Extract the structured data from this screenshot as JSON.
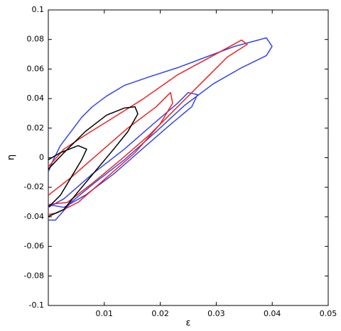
{
  "chart_data": {
    "type": "line",
    "xlabel": "ε",
    "ylabel": "η",
    "xlim": [
      0,
      0.05
    ],
    "xticks": [
      0.01,
      0.02,
      0.03,
      0.04,
      0.05
    ],
    "ylim": [
      -0.1,
      0.1
    ],
    "yticks": [
      -0.1,
      -0.08,
      -0.06,
      -0.04,
      -0.02,
      0,
      0.02,
      0.04,
      0.06,
      0.08,
      0.1
    ],
    "series": [
      {
        "color": "#3344ee",
        "x": [
          0,
          0.00089,
          0.00216,
          0.00406,
          0.00596,
          0.00787,
          0.01041,
          0.01358,
          0.01802,
          0.0231,
          0.02817,
          0.03325,
          0.03896,
          0.03997,
          0.03896,
          0.03452,
          0.02944,
          0.02437,
          0.01929,
          0.01358,
          0.00787,
          0.00406,
          0.00127,
          0
        ],
        "values": [
          -0.0096,
          -0.0014,
          0.0082,
          0.0177,
          0.0273,
          0.0345,
          0.0417,
          0.0489,
          0.0547,
          0.0609,
          0.0681,
          0.0753,
          0.0811,
          0.0753,
          0.0691,
          0.0609,
          0.0499,
          0.0355,
          0.0177,
          -0.0014,
          -0.0182,
          -0.0302,
          -0.0422,
          -0.0422
        ]
      },
      {
        "color": "#3344ee",
        "x": [
          0,
          0.00279,
          0.00787,
          0.01358,
          0.01865,
          0.0231,
          0.025,
          0.02665,
          0.02563,
          0.02183,
          0.01675,
          0.01168,
          0.0066,
          0.00279,
          0
        ],
        "values": [
          -0.0336,
          -0.0278,
          -0.011,
          0.0058,
          0.0225,
          0.0369,
          0.0441,
          0.0427,
          0.0345,
          0.0225,
          0.0058,
          -0.011,
          -0.0254,
          -0.0336,
          -0.0317
        ]
      },
      {
        "color": "#ee2222",
        "x": [
          0,
          0.00279,
          0.0066,
          0.01168,
          0.01675,
          0.0231,
          0.02944,
          0.03452,
          0.03553,
          0.03198,
          0.02817,
          0.0231,
          0.01802,
          0.01294,
          0.00787,
          0.00343,
          0
        ],
        "values": [
          -0.0062,
          0.0058,
          0.0153,
          0.0273,
          0.0393,
          0.0561,
          0.0691,
          0.0796,
          0.0767,
          0.0681,
          0.0537,
          0.0345,
          0.0153,
          -0.0014,
          -0.0173,
          -0.0302,
          -0.0317
        ]
      },
      {
        "color": "#ee2222",
        "x": [
          0,
          0.00406,
          0.00914,
          0.01421,
          0.01929,
          0.02183,
          0.02221,
          0.01992,
          0.01548,
          0.01041,
          0.00533,
          0.00152,
          0
        ],
        "values": [
          -0.0254,
          -0.0134,
          0.0034,
          0.0201,
          0.0345,
          0.0441,
          0.0369,
          0.0225,
          0.0034,
          -0.0134,
          -0.0302,
          -0.0374,
          -0.0384
        ]
      },
      {
        "color": "#000000",
        "x": [
          0,
          0.00279,
          0.0066,
          0.01041,
          0.01358,
          0.01548,
          0.01599,
          0.01421,
          0.01168,
          0.0085,
          0.00533,
          0.00279,
          0
        ],
        "values": [
          -0.0077,
          0.0034,
          0.0177,
          0.0288,
          0.0336,
          0.0345,
          0.0297,
          0.0177,
          0.0058,
          -0.0086,
          -0.023,
          -0.035,
          -0.0398
        ]
      },
      {
        "color": "#000000",
        "x": [
          0,
          0.00216,
          0.00533,
          0.00685,
          0.00596,
          0.00406,
          0.00216,
          0.00025,
          0
        ],
        "values": [
          -0.0014,
          0.0034,
          0.0082,
          0.0058,
          -0.0014,
          -0.0134,
          -0.0254,
          -0.0326,
          -0.0326
        ]
      }
    ]
  }
}
